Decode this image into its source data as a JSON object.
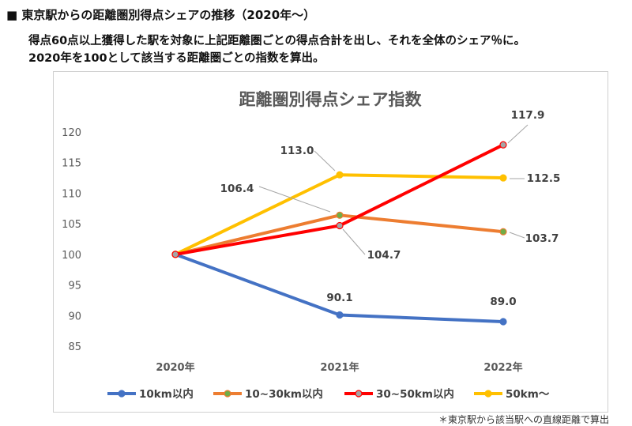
{
  "header": {
    "title": "■ 東京駅からの距離圏別得点シェアの推移（2020年～）",
    "desc_line1": "得点60点以上獲得した駅を対象に上記距離圏ごとの得点合計を出し、それを全体のシェア％に。",
    "desc_line2": "2020年を100として該当する距離圏ごとの指数を算出。"
  },
  "footnote": "＊東京駅から該当駅への直線距離で算出",
  "chart_data": {
    "type": "line",
    "title": "距離圏別得点シェア指数",
    "categories": [
      "2020年",
      "2021年",
      "2022年"
    ],
    "ylim": [
      85,
      120
    ],
    "yticks": [
      85,
      90,
      95,
      100,
      105,
      110,
      115,
      120
    ],
    "grid": false,
    "legend_position": "bottom",
    "series": [
      {
        "name": "10km以内",
        "values": [
          100,
          90.1,
          89.0
        ],
        "color": "#4472C4",
        "marker": "#4472C4",
        "labels": [
          "",
          "90.1",
          "89.0"
        ]
      },
      {
        "name": "10~30km以内",
        "values": [
          100,
          106.4,
          103.7
        ],
        "color": "#ED7D31",
        "marker": "#70AD47",
        "labels": [
          "",
          "106.4",
          "103.7"
        ]
      },
      {
        "name": "30~50km以内",
        "values": [
          100,
          104.7,
          117.9
        ],
        "color": "#FF0000",
        "marker": "#A5A5A5",
        "labels": [
          "",
          "104.7",
          "117.9"
        ]
      },
      {
        "name": "50km～",
        "values": [
          100,
          113.0,
          112.5
        ],
        "color": "#FFC000",
        "marker": "#FFC000",
        "labels": [
          "",
          "113.0",
          "112.5"
        ]
      }
    ]
  }
}
